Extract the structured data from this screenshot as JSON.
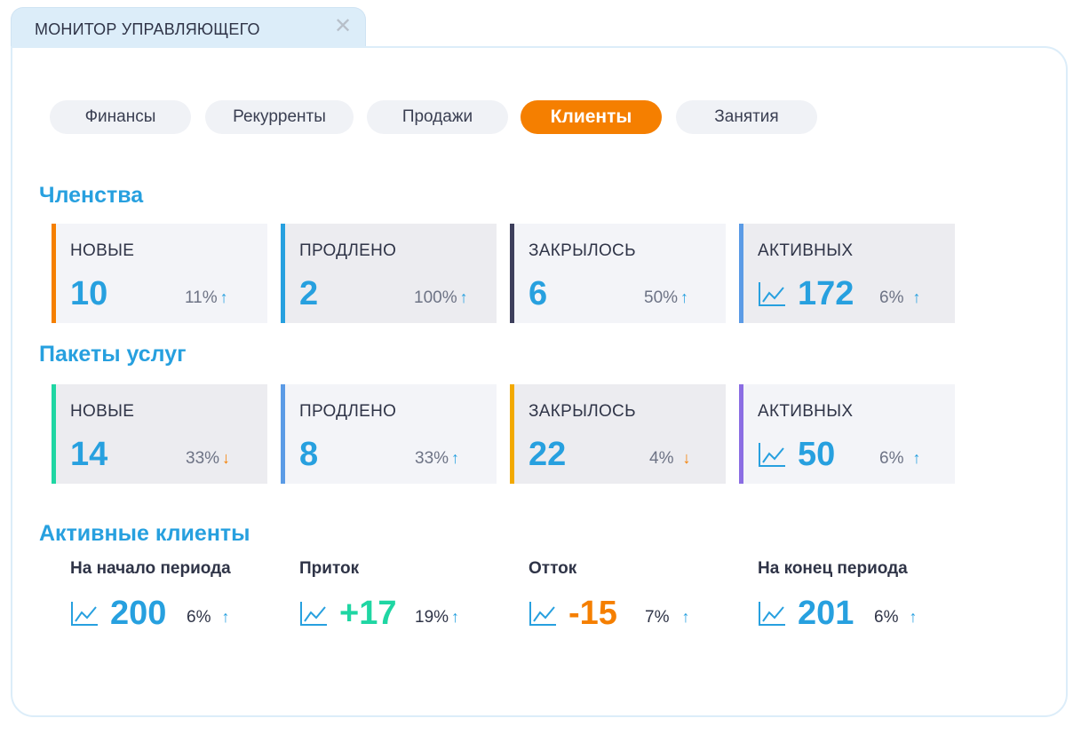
{
  "window": {
    "title": "МОНИТОР УПРАВЛЯЮЩЕГО",
    "close_glyph": "✕"
  },
  "tabs": [
    {
      "label": "Финансы",
      "active": false
    },
    {
      "label": "Рекурренты",
      "active": false
    },
    {
      "label": "Продажи",
      "active": false
    },
    {
      "label": "Клиенты",
      "active": true
    },
    {
      "label": "Занятия",
      "active": false
    }
  ],
  "memberships": {
    "title": "Членства",
    "cards": [
      {
        "label": "НОВЫЕ",
        "value": "10",
        "pct": "11%",
        "trend": "up",
        "accent": "#f57f00",
        "icon": ""
      },
      {
        "label": "ПРОДЛЕНО",
        "value": "2",
        "pct": "100%",
        "trend": "up",
        "accent": "#27a0df",
        "icon": ""
      },
      {
        "label": "ЗАКРЫЛОСЬ",
        "value": "6",
        "pct": "50%",
        "trend": "up",
        "accent": "#3d3f5c",
        "icon": ""
      },
      {
        "label": "АКТИВНЫХ",
        "value": "172",
        "pct": "6%",
        "trend": "up",
        "accent": "#5b9be6",
        "icon": "line-chart-icon"
      }
    ]
  },
  "packages": {
    "title": "Пакеты услуг",
    "cards": [
      {
        "label": "НОВЫЕ",
        "value": "14",
        "pct": "33%",
        "trend": "down",
        "accent": "#1fd6a3",
        "icon": ""
      },
      {
        "label": "ПРОДЛЕНО",
        "value": "8",
        "pct": "33%",
        "trend": "up",
        "accent": "#5b9be6",
        "icon": ""
      },
      {
        "label": "ЗАКРЫЛОСЬ",
        "value": "22",
        "pct": "4%",
        "trend": "down",
        "accent": "#f2a900",
        "icon": ""
      },
      {
        "label": "АКТИВНЫХ",
        "value": "50",
        "pct": "6%",
        "trend": "up",
        "accent": "#8b6de3",
        "icon": "line-chart-icon"
      }
    ]
  },
  "active_clients": {
    "title": "Активные клиенты",
    "items": [
      {
        "label": "На начало периода",
        "value": "200",
        "pct": "6%",
        "trend": "up",
        "value_color": "#27a0df",
        "icon": "line-chart-icon"
      },
      {
        "label": "Приток",
        "value": "+17",
        "pct": "19%",
        "trend": "up",
        "value_color": "#1fd6a3",
        "icon": "line-chart-icon"
      },
      {
        "label": "Отток",
        "value": "-15",
        "pct": "7%",
        "trend": "up",
        "value_color": "#f57f00",
        "icon": "line-chart-icon"
      },
      {
        "label": "На конец периода",
        "value": "201",
        "pct": "6%",
        "trend": "up",
        "value_color": "#27a0df",
        "icon": "line-chart-icon"
      }
    ]
  },
  "arrows": {
    "up": "↑",
    "down": "↓"
  }
}
